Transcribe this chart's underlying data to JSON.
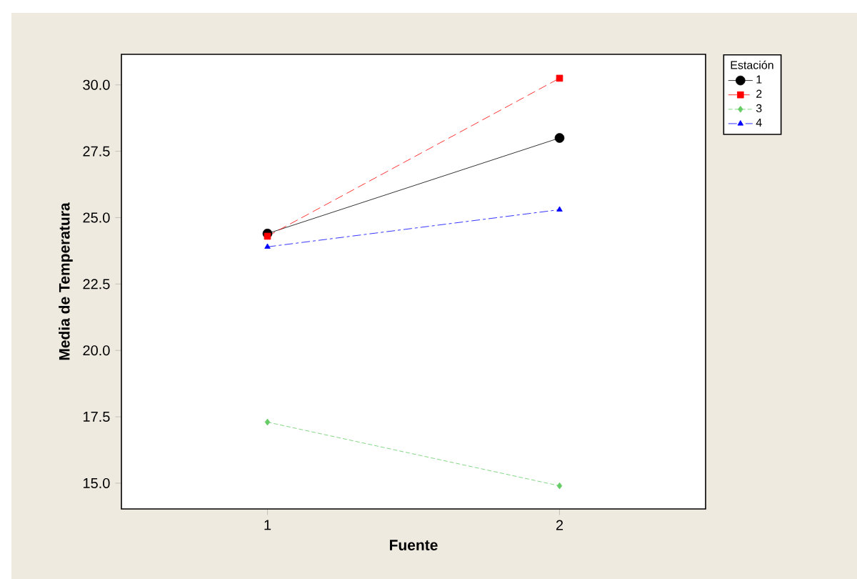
{
  "chart_data": {
    "type": "line",
    "xlabel": "Fuente",
    "ylabel": "Media de Temperatura",
    "legend_title": "Estación",
    "x": [
      1,
      2
    ],
    "xlim": [
      0.5,
      2.5
    ],
    "xticks": [
      1,
      2
    ],
    "ylim": [
      14.03,
      31.15
    ],
    "yticks": [
      {
        "value": 15,
        "label": "15.0"
      },
      {
        "value": 17.5,
        "label": "17.5"
      },
      {
        "value": 20,
        "label": "20.0"
      },
      {
        "value": 22.5,
        "label": "22.5"
      },
      {
        "value": 25,
        "label": "25.0"
      },
      {
        "value": 27.5,
        "label": "27.5"
      },
      {
        "value": 30,
        "label": "30.0"
      }
    ],
    "legend": "top right",
    "grid": false,
    "series": [
      {
        "name": "1",
        "color": "#000000",
        "values": [
          24.4,
          28.0
        ],
        "marker": "circle",
        "line_style": "solid"
      },
      {
        "name": "2",
        "color": "#ff0000",
        "values": [
          24.3,
          30.25
        ],
        "marker": "square",
        "line_style": "dashed"
      },
      {
        "name": "3",
        "color": "#66cc66",
        "values": [
          17.3,
          14.9
        ],
        "marker": "diamond",
        "line_style": "dotted"
      },
      {
        "name": "4",
        "color": "#0000ff",
        "values": [
          23.9,
          25.3
        ],
        "marker": "triangle",
        "line_style": "dashdot"
      }
    ]
  }
}
